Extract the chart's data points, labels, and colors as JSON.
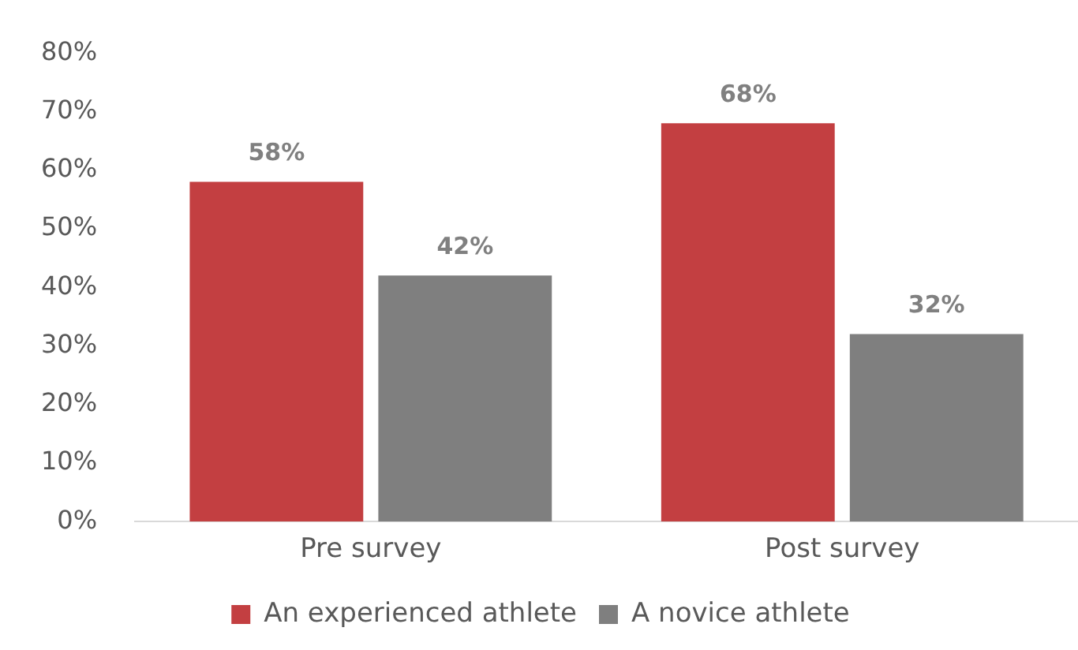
{
  "chart_data": {
    "type": "bar",
    "categories": [
      "Pre survey",
      "Post survey"
    ],
    "series": [
      {
        "name": "An experienced athlete",
        "color": "#c33f41",
        "values": [
          58,
          68
        ],
        "value_labels": [
          "58%",
          "68%"
        ]
      },
      {
        "name": "A novice athlete",
        "color": "#7f7f7f",
        "values": [
          42,
          32
        ],
        "value_labels": [
          "42%",
          "32%"
        ]
      }
    ],
    "ylim": [
      0,
      80
    ],
    "yticks": [
      {
        "value": 0,
        "label": "0%"
      },
      {
        "value": 10,
        "label": "10%"
      },
      {
        "value": 20,
        "label": "20%"
      },
      {
        "value": 30,
        "label": "30%"
      },
      {
        "value": 40,
        "label": "40%"
      },
      {
        "value": 50,
        "label": "50%"
      },
      {
        "value": 60,
        "label": "60%"
      },
      {
        "value": 70,
        "label": "70%"
      },
      {
        "value": 80,
        "label": "80%"
      }
    ],
    "grid": false,
    "legend": "bottom"
  }
}
